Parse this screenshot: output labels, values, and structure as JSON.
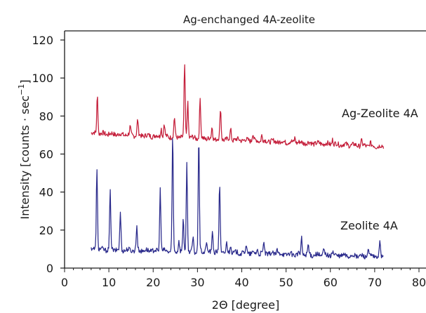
{
  "chart_data": {
    "type": "line",
    "title": "Ag-enchanged 4A-zeolite",
    "xlabel": "2Θ [degree]",
    "ylabel": "Intensity [counts · sec",
    "ylabel_superscript": "−1",
    "ylabel_suffix": "]",
    "xlim": [
      0,
      80
    ],
    "ylim": [
      0,
      120
    ],
    "x_ticks": [
      0,
      10,
      20,
      30,
      40,
      50,
      60,
      70,
      80
    ],
    "y_ticks": [
      0,
      20,
      40,
      60,
      80,
      100,
      120
    ],
    "x_tick_labels": [
      "0",
      "10",
      "20",
      "30",
      "40",
      "50",
      "60",
      "70",
      "80"
    ],
    "y_tick_labels": [
      "0",
      "20",
      "40",
      "60",
      "80",
      "100",
      "120"
    ],
    "grid": false,
    "series": [
      {
        "name": "Ag-Zeolite 4A",
        "color": "#c41e3a",
        "baseline_start": 71,
        "baseline_end": 64,
        "x_start": 6,
        "x_end": 72,
        "peaks": [
          [
            7.4,
            91
          ],
          [
            14.8,
            74
          ],
          [
            16.5,
            78
          ],
          [
            21.8,
            74
          ],
          [
            22.5,
            76
          ],
          [
            24.8,
            79
          ],
          [
            27.1,
            107
          ],
          [
            27.8,
            88
          ],
          [
            30.6,
            89
          ],
          [
            33.3,
            74
          ],
          [
            35.2,
            84
          ],
          [
            37.5,
            73
          ],
          [
            42.5,
            71
          ],
          [
            44.5,
            70
          ],
          [
            52.0,
            69
          ],
          [
            60.5,
            68
          ],
          [
            67.0,
            67
          ],
          [
            69.0,
            66
          ]
        ]
      },
      {
        "name": "Zeolite 4A",
        "color": "#2b2b8c",
        "baseline_start": 10,
        "baseline_end": 6,
        "x_start": 6,
        "x_end": 72,
        "peaks": [
          [
            7.3,
            52
          ],
          [
            10.3,
            40
          ],
          [
            12.6,
            29
          ],
          [
            16.3,
            22
          ],
          [
            21.6,
            42
          ],
          [
            24.4,
            70
          ],
          [
            25.8,
            15
          ],
          [
            26.8,
            26
          ],
          [
            27.6,
            56
          ],
          [
            29.0,
            16
          ],
          [
            30.3,
            70
          ],
          [
            32.0,
            14
          ],
          [
            33.4,
            20
          ],
          [
            35.0,
            45
          ],
          [
            36.6,
            13
          ],
          [
            37.5,
            13
          ],
          [
            41.0,
            12
          ],
          [
            43.5,
            10
          ],
          [
            45.0,
            13
          ],
          [
            48.0,
            10
          ],
          [
            53.5,
            16
          ],
          [
            55.0,
            12
          ],
          [
            58.5,
            10
          ],
          [
            60.5,
            9
          ],
          [
            68.5,
            10
          ],
          [
            71.2,
            13
          ]
        ]
      }
    ]
  }
}
